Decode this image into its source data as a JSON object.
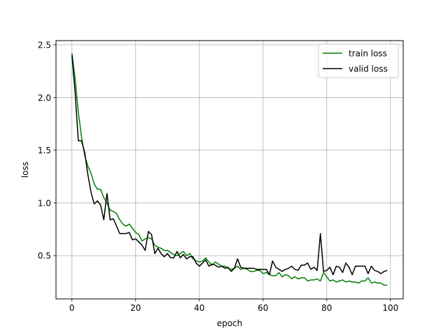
{
  "chart_data": {
    "type": "line",
    "title": "",
    "xlabel": "epoch",
    "ylabel": "loss",
    "xlim": [
      -5,
      104
    ],
    "ylim": [
      0.09,
      2.54
    ],
    "xticks": [
      0,
      20,
      40,
      60,
      80,
      100
    ],
    "yticks": [
      0.5,
      1.0,
      1.5,
      2.0,
      2.5
    ],
    "xtick_labels": [
      "0",
      "20",
      "40",
      "60",
      "80",
      "100"
    ],
    "ytick_labels": [
      "0.5",
      "1.0",
      "1.5",
      "2.0",
      "2.5"
    ],
    "grid": true,
    "legend_position": "top-right",
    "series": [
      {
        "name": "train loss",
        "color": "#008000",
        "x": [
          0,
          1,
          2,
          3,
          4,
          5,
          6,
          7,
          8,
          9,
          10,
          11,
          12,
          13,
          14,
          15,
          16,
          17,
          18,
          19,
          20,
          21,
          22,
          23,
          24,
          25,
          26,
          27,
          28,
          29,
          30,
          31,
          32,
          33,
          34,
          35,
          36,
          37,
          38,
          39,
          40,
          41,
          42,
          43,
          44,
          45,
          46,
          47,
          48,
          49,
          50,
          51,
          52,
          53,
          54,
          55,
          56,
          57,
          58,
          59,
          60,
          61,
          62,
          63,
          64,
          65,
          66,
          67,
          68,
          69,
          70,
          71,
          72,
          73,
          74,
          75,
          76,
          77,
          78,
          79,
          80,
          81,
          82,
          83,
          84,
          85,
          86,
          87,
          88,
          89,
          90,
          91,
          92,
          93,
          94,
          95,
          96,
          97,
          98,
          99
        ],
        "values": [
          2.42,
          2.18,
          1.86,
          1.63,
          1.45,
          1.35,
          1.28,
          1.18,
          1.13,
          1.13,
          1.05,
          1.0,
          0.93,
          0.92,
          0.9,
          0.84,
          0.8,
          0.78,
          0.8,
          0.76,
          0.72,
          0.7,
          0.64,
          0.66,
          0.67,
          0.66,
          0.6,
          0.58,
          0.57,
          0.55,
          0.55,
          0.53,
          0.51,
          0.5,
          0.52,
          0.54,
          0.5,
          0.52,
          0.47,
          0.45,
          0.44,
          0.45,
          0.48,
          0.44,
          0.41,
          0.44,
          0.42,
          0.4,
          0.4,
          0.38,
          0.37,
          0.38,
          0.4,
          0.37,
          0.38,
          0.37,
          0.35,
          0.35,
          0.36,
          0.36,
          0.33,
          0.34,
          0.32,
          0.31,
          0.31,
          0.34,
          0.3,
          0.32,
          0.31,
          0.28,
          0.3,
          0.28,
          0.29,
          0.29,
          0.26,
          0.27,
          0.27,
          0.28,
          0.26,
          0.34,
          0.3,
          0.26,
          0.27,
          0.25,
          0.26,
          0.27,
          0.25,
          0.26,
          0.25,
          0.25,
          0.24,
          0.26,
          0.26,
          0.29,
          0.24,
          0.25,
          0.24,
          0.24,
          0.22,
          0.22
        ]
      },
      {
        "name": "valid loss",
        "color": "#000000",
        "x": [
          0,
          1,
          2,
          3,
          4,
          5,
          6,
          7,
          8,
          9,
          10,
          11,
          12,
          13,
          14,
          15,
          16,
          17,
          18,
          19,
          20,
          21,
          22,
          23,
          24,
          25,
          26,
          27,
          28,
          29,
          30,
          31,
          32,
          33,
          34,
          35,
          36,
          37,
          38,
          39,
          40,
          41,
          42,
          43,
          44,
          45,
          46,
          47,
          48,
          49,
          50,
          51,
          52,
          53,
          54,
          55,
          56,
          57,
          58,
          59,
          60,
          61,
          62,
          63,
          64,
          65,
          66,
          67,
          68,
          69,
          70,
          71,
          72,
          73,
          74,
          75,
          76,
          77,
          78,
          79,
          80,
          81,
          82,
          83,
          84,
          85,
          86,
          87,
          88,
          89,
          90,
          91,
          92,
          93,
          94,
          95,
          96,
          97,
          98,
          99
        ],
        "values": [
          2.4,
          2.05,
          1.59,
          1.59,
          1.48,
          1.27,
          1.1,
          0.99,
          1.02,
          0.98,
          0.84,
          1.09,
          0.84,
          0.85,
          0.78,
          0.71,
          0.71,
          0.71,
          0.72,
          0.65,
          0.66,
          0.63,
          0.6,
          0.55,
          0.73,
          0.7,
          0.52,
          0.57,
          0.52,
          0.49,
          0.52,
          0.48,
          0.48,
          0.54,
          0.48,
          0.51,
          0.47,
          0.49,
          0.49,
          0.43,
          0.4,
          0.43,
          0.46,
          0.4,
          0.42,
          0.41,
          0.39,
          0.4,
          0.38,
          0.39,
          0.35,
          0.38,
          0.47,
          0.39,
          0.38,
          0.38,
          0.38,
          0.38,
          0.37,
          0.37,
          0.37,
          0.37,
          0.32,
          0.45,
          0.39,
          0.37,
          0.35,
          0.37,
          0.38,
          0.4,
          0.37,
          0.36,
          0.41,
          0.41,
          0.43,
          0.37,
          0.39,
          0.36,
          0.71,
          0.35,
          0.36,
          0.39,
          0.32,
          0.4,
          0.39,
          0.34,
          0.43,
          0.39,
          0.32,
          0.4,
          0.4,
          0.4,
          0.4,
          0.33,
          0.4,
          0.36,
          0.35,
          0.33,
          0.35,
          0.36
        ]
      }
    ]
  }
}
